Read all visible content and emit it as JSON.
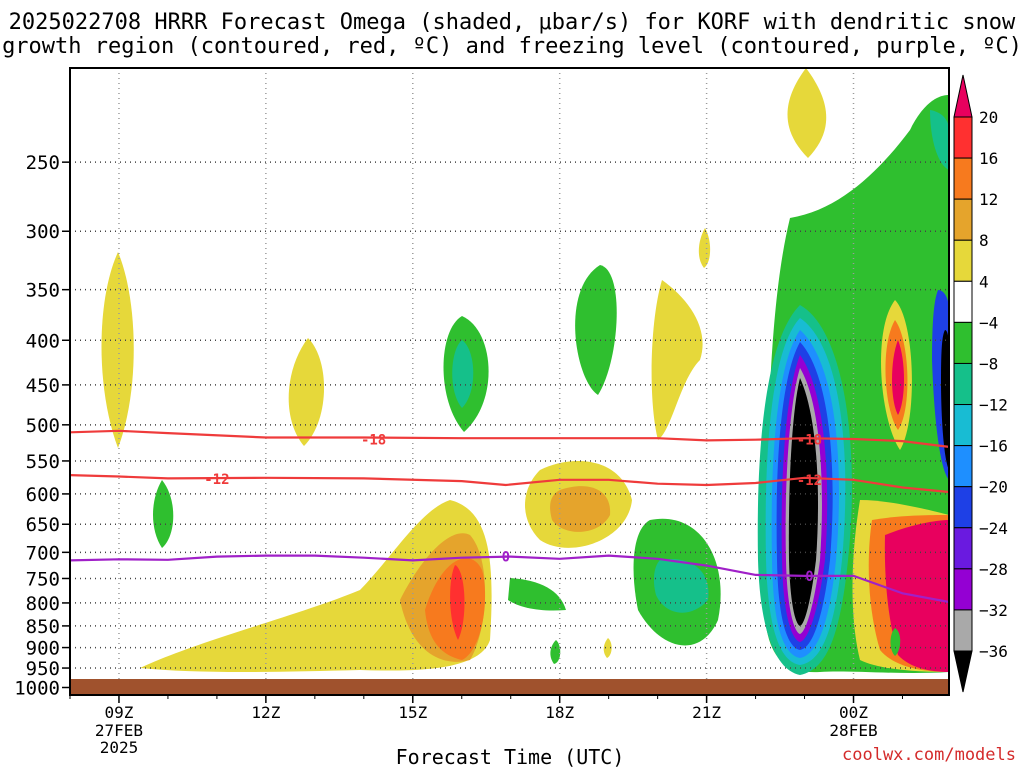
{
  "chart_data": {
    "type": "heatmap",
    "title_line1": "2025022708 HRRR Forecast Omega (shaded, μbar/s) for KORF with dendritic snow",
    "title_line2": "growth region (contoured, red, ºC) and freezing level (contoured, purple, ºC)",
    "xlabel": "Forecast Time (UTC)",
    "credit": "coolwx.com/models",
    "x_ticks": [
      {
        "label": "09Z",
        "sub1": "27FEB",
        "sub2": "2025",
        "hour": 9
      },
      {
        "label": "12Z",
        "sub1": "",
        "sub2": "",
        "hour": 12
      },
      {
        "label": "15Z",
        "sub1": "",
        "sub2": "",
        "hour": 15
      },
      {
        "label": "18Z",
        "sub1": "",
        "sub2": "",
        "hour": 18
      },
      {
        "label": "21Z",
        "sub1": "",
        "sub2": "",
        "hour": 21
      },
      {
        "label": "00Z",
        "sub1": "28FEB",
        "sub2": "",
        "hour": 24
      }
    ],
    "xlim": [
      8.0,
      25.95
    ],
    "y_ticks": [
      250,
      300,
      350,
      400,
      450,
      500,
      550,
      600,
      650,
      700,
      750,
      800,
      850,
      900,
      950,
      1000
    ],
    "ylim_hpa": [
      195,
      1020
    ],
    "colorbar": {
      "labels": [
        "20",
        "16",
        "12",
        "8",
        "4",
        "−4",
        "−8",
        "−12",
        "−16",
        "−20",
        "−24",
        "−28",
        "−32",
        "−36"
      ],
      "colors": [
        "#e8005e",
        "#ff3030",
        "#f77a1e",
        "#e5a42c",
        "#e6d83a",
        "#ffffff",
        "#2fbf2f",
        "#15c08a",
        "#18bcd3",
        "#1e8fff",
        "#1e40e6",
        "#6a1ae0",
        "#9400d3",
        "#a9a9a9",
        "#000000"
      ]
    },
    "contours": [
      {
        "label": "-18",
        "color": "#ef3b3b",
        "x": [
          8,
          9,
          10,
          12,
          14,
          16,
          18,
          20,
          21,
          22,
          23,
          24,
          25,
          25.95
        ],
        "y": [
          510,
          508,
          511,
          517,
          517,
          518,
          518,
          518,
          521,
          520,
          518,
          519,
          522,
          530
        ]
      },
      {
        "label": "-12",
        "color": "#ef3b3b",
        "x": [
          8,
          9,
          10,
          12,
          14,
          16,
          16.9,
          18,
          19,
          20,
          21,
          22,
          23,
          24,
          25,
          25.95
        ],
        "y": [
          571,
          573,
          576,
          575,
          576,
          580,
          586,
          578,
          578,
          584,
          586,
          583,
          575,
          578,
          590,
          597
        ]
      },
      {
        "label": "0",
        "color": "#a020c8",
        "x": [
          8,
          9,
          10,
          11,
          12,
          13,
          14,
          15,
          16,
          17,
          18,
          19,
          20,
          21,
          22,
          23,
          24,
          25,
          25.95
        ],
        "y": [
          715,
          713,
          714,
          708,
          706,
          706,
          710,
          715,
          710,
          708,
          712,
          706,
          712,
          725,
          743,
          745,
          745,
          780,
          798
        ]
      }
    ],
    "contour_labels": [
      {
        "text": "-18",
        "color": "#ef3b3b",
        "x": 14.2,
        "y": 520
      },
      {
        "text": "-12",
        "color": "#ef3b3b",
        "x": 11.0,
        "y": 577
      },
      {
        "text": "0",
        "color": "#a020c8",
        "x": 16.9,
        "y": 708
      },
      {
        "text": "-18",
        "color": "#ef3b3b",
        "x": 23.1,
        "y": 520
      },
      {
        "text": "-12",
        "color": "#ef3b3b",
        "x": 23.1,
        "y": 578
      },
      {
        "text": "0",
        "color": "#a020c8",
        "x": 23.1,
        "y": 745
      }
    ],
    "ground_color": "#a0522d"
  }
}
